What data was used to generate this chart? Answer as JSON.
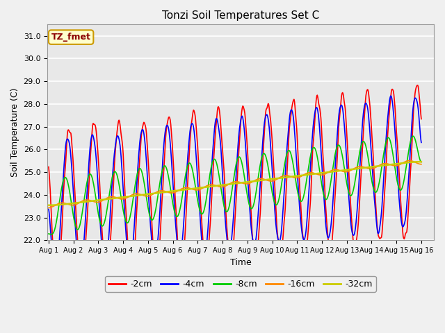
{
  "title": "Tonzi Soil Temperatures Set C",
  "xlabel": "Time",
  "ylabel": "Soil Temperature (C)",
  "ylim": [
    22.0,
    31.5
  ],
  "xlim_days": 15.5,
  "annotation": "TZ_fmet",
  "bg_color": "#f0f0f0",
  "plot_bg": "#e8e8e8",
  "legend_labels": [
    "-2cm",
    "-4cm",
    "-8cm",
    "-16cm",
    "-32cm"
  ],
  "legend_colors": [
    "#ff0000",
    "#0000ff",
    "#00cc00",
    "#ff8800",
    "#cccc00"
  ],
  "line_widths": [
    1.2,
    1.2,
    1.2,
    1.2,
    1.8
  ],
  "xtick_labels": [
    "Aug 1",
    "Aug 2",
    "Aug 3",
    "Aug 4",
    "Aug 5",
    "Aug 6",
    "Aug 7",
    "Aug 8",
    "Aug 9",
    "Aug 10",
    "Aug 11",
    "Aug 12",
    "Aug 13",
    "Aug 14",
    "Aug 15",
    "Aug 16"
  ],
  "ytick_labels": [
    "22.0",
    "23.0",
    "24.0",
    "25.0",
    "26.0",
    "27.0",
    "28.0",
    "29.0",
    "30.0",
    "31.0"
  ],
  "n_points": 721,
  "base_temp": 23.5,
  "trend_total": 2.0,
  "amplitudes": [
    3.4,
    3.0,
    1.6,
    0.75,
    0.15
  ],
  "phase_lags_hours": [
    0.0,
    1.5,
    4.0,
    8.0,
    0.0
  ],
  "peak_hour": 14.0,
  "smooth_sigmas": [
    0.3,
    0.5,
    1.5,
    4.0,
    8.0
  ]
}
